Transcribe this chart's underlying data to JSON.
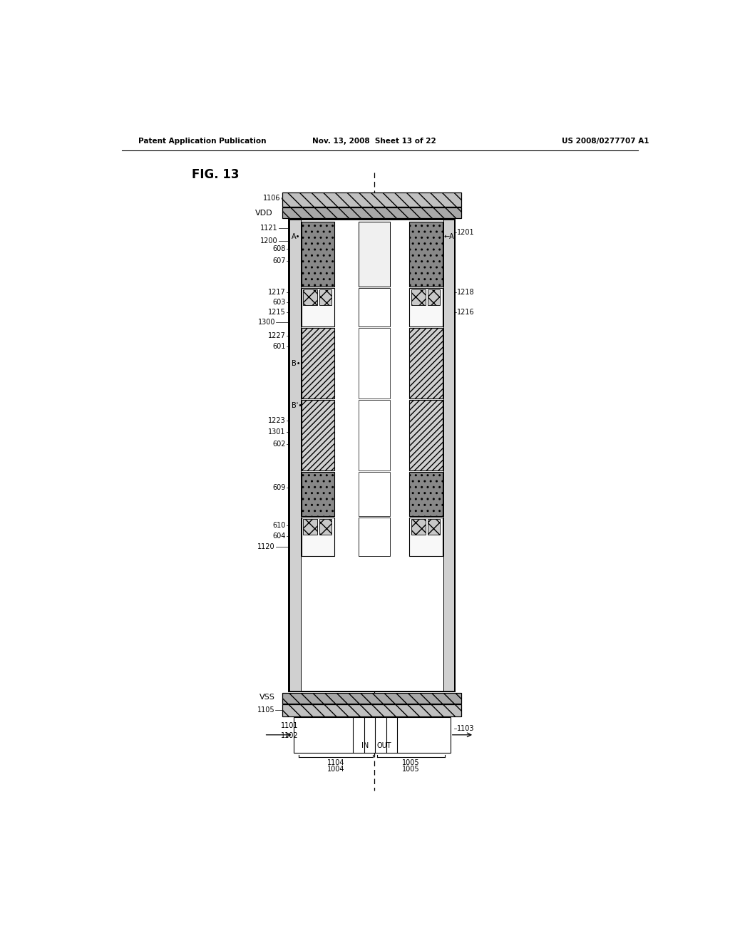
{
  "title": "FIG. 13",
  "header_left": "Patent Application Publication",
  "header_center": "Nov. 13, 2008  Sheet 13 of 22",
  "header_right": "US 2008/0277707 A1",
  "bg_color": "#ffffff",
  "text_color": "#000000",
  "fig_label": "FIG. 13"
}
